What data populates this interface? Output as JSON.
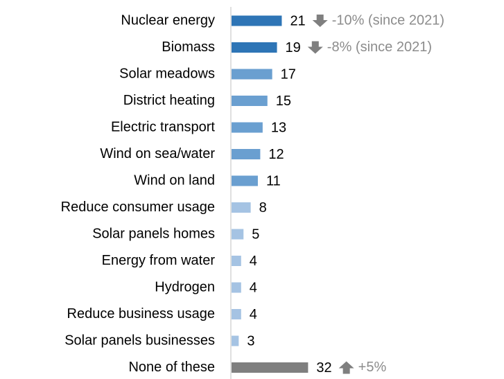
{
  "chart_data": {
    "type": "bar",
    "orientation": "horizontal",
    "categories": [
      "Nuclear energy",
      "Biomass",
      "Solar meadows",
      "District heating",
      "Electric transport",
      "Wind on sea/water",
      "Wind on land",
      "Reduce consumer usage",
      "Solar panels homes",
      "Energy from water",
      "Hydrogen",
      "Reduce business usage",
      "Solar panels businesses",
      "None of these"
    ],
    "values": [
      21,
      19,
      17,
      15,
      13,
      12,
      11,
      8,
      5,
      4,
      4,
      4,
      3,
      32
    ],
    "colors": [
      "#2e75b6",
      "#2e75b6",
      "#6a9fd0",
      "#6a9fd0",
      "#6a9fd0",
      "#6a9fd0",
      "#6a9fd0",
      "#a5c3e3",
      "#a5c3e3",
      "#a5c3e3",
      "#a5c3e3",
      "#a5c3e3",
      "#a5c3e3",
      "#7f7f7f"
    ],
    "annotations": [
      {
        "category": "Nuclear energy",
        "text": "-10% (since 2021)",
        "arrow": "down"
      },
      {
        "category": "Biomass",
        "text": "-8% (since 2021)",
        "arrow": "down"
      },
      {
        "category": "None of these",
        "text": "+5%",
        "arrow": "up"
      }
    ],
    "grid": false
  }
}
